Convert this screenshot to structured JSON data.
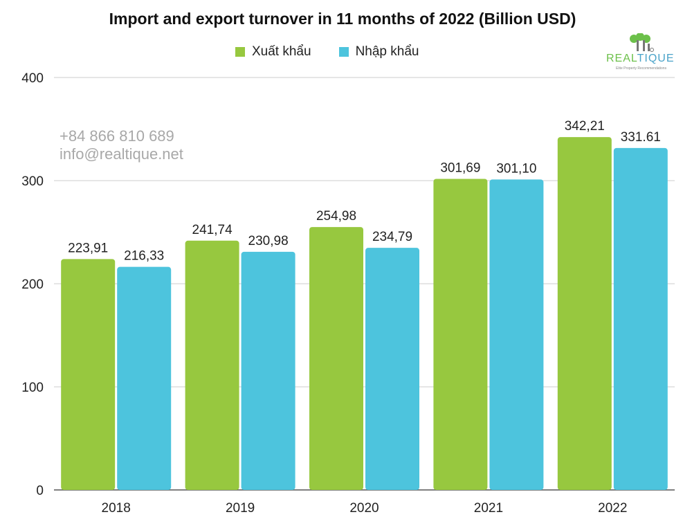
{
  "chart_data": {
    "type": "bar",
    "title": "Import and export turnover in 11 months of 2022 (Billion USD)",
    "categories": [
      "2018",
      "2019",
      "2020",
      "2021",
      "2022"
    ],
    "series": [
      {
        "name": "Xuất khẩu",
        "color": "#97c83f",
        "values": [
          223.91,
          241.74,
          254.98,
          301.69,
          342.21
        ],
        "labels": [
          "223,91",
          "241,74",
          "254,98",
          "301,69",
          "342,21"
        ]
      },
      {
        "name": "Nhập khẩu",
        "color": "#4dc4dd",
        "values": [
          216.33,
          230.98,
          234.79,
          301.1,
          331.61
        ],
        "labels": [
          "216,33",
          "230,98",
          "234,79",
          "301,10",
          "331.61"
        ]
      }
    ],
    "yticks": [
      "0",
      "100",
      "200",
      "300",
      "400"
    ],
    "ylim": [
      0,
      400
    ],
    "grid": true,
    "legend_position": "top-center"
  },
  "watermark": {
    "phone": "+84 866 810 689",
    "email": "info@realtique.net"
  },
  "logo": {
    "text_part1": "REAL",
    "text_part2": "TIQUE",
    "tagline": "Elite Property Recommendations"
  }
}
